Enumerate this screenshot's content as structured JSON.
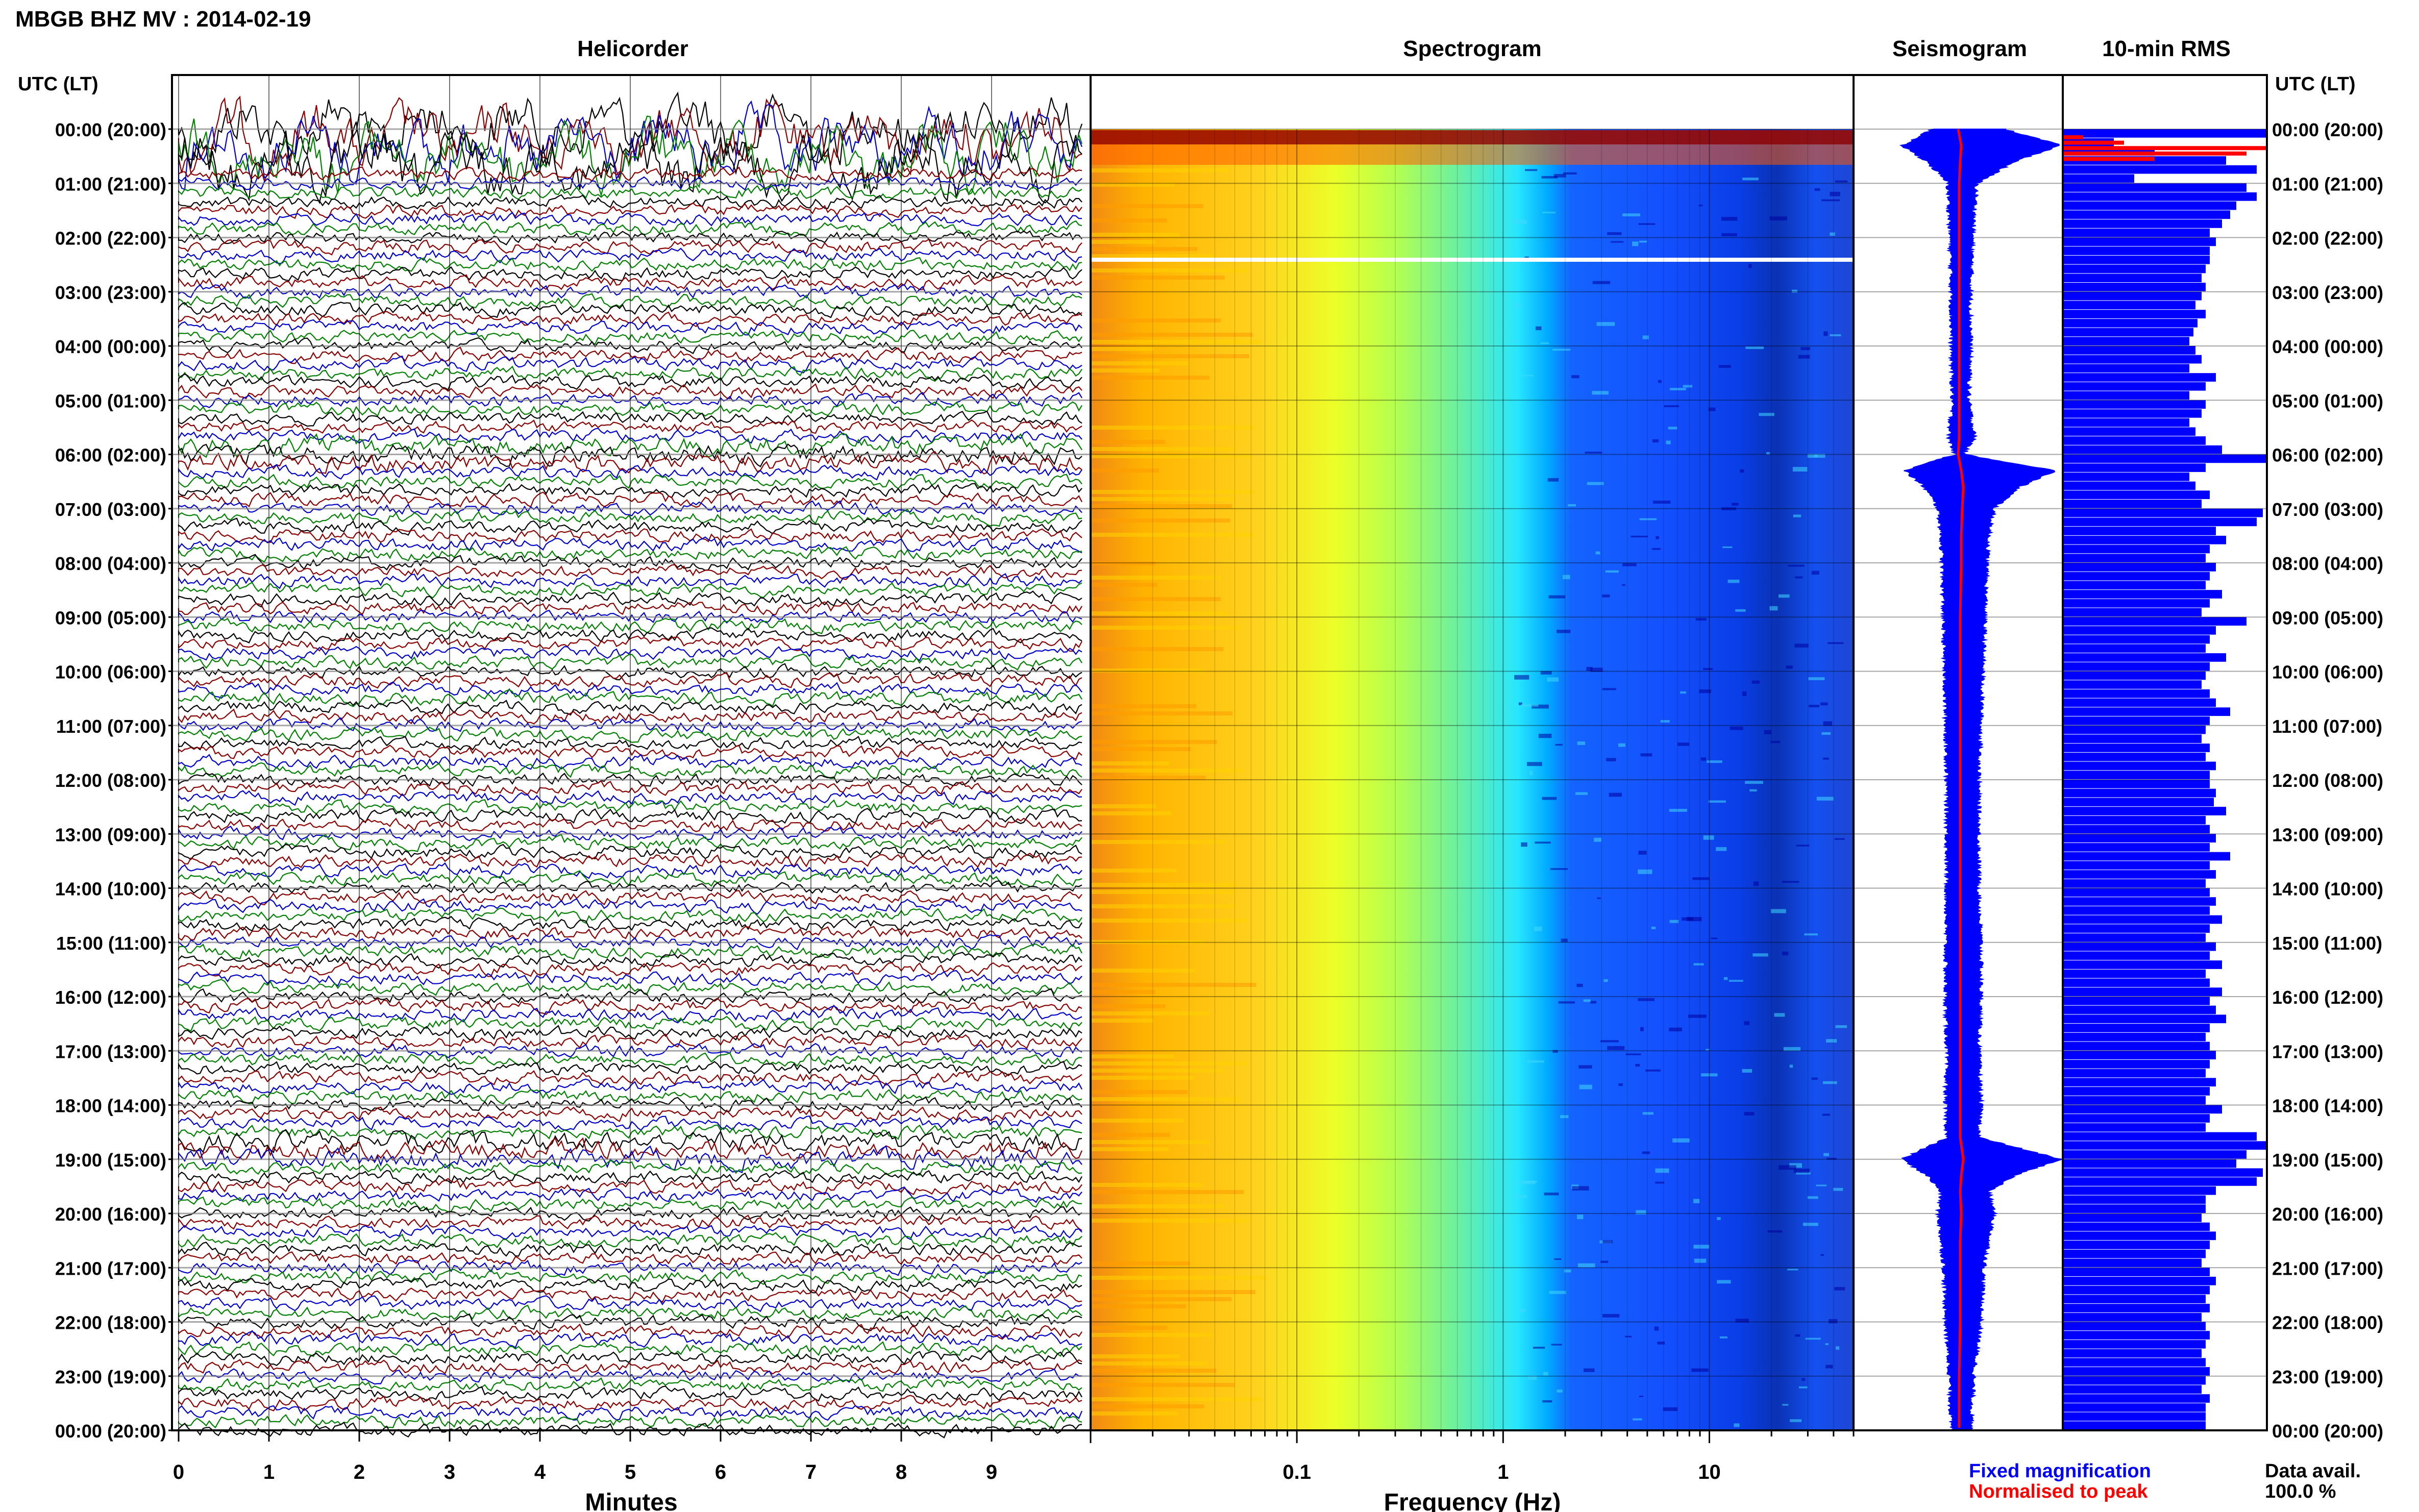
{
  "header": {
    "title": "MBGB BHZ MV : 2014-02-19"
  },
  "panels": {
    "helicorder": "Helicorder",
    "spectrogram": "Spectrogram",
    "seismogram": "Seismogram",
    "rms": "10-min RMS"
  },
  "axes": {
    "time_label": "UTC (LT)",
    "helicorder_xlabel": "Minutes",
    "spectrogram_xlabel": "Frequency (Hz)"
  },
  "legend": {
    "fixed": "Fixed magnification",
    "normalised": "Normalised to peak",
    "data_avail_label": "Data avail.",
    "data_avail_value": "100.0 %"
  },
  "colors": {
    "trace_cycle": [
      "#000000",
      "#8b0000",
      "#0000cd",
      "#008000"
    ],
    "fixed_magnification": "#0000ff",
    "normalised_to_peak": "#ff0000",
    "rms_bar": "#0000ff",
    "rms_bar_highlight": "#ff0000"
  },
  "chart_data": [
    {
      "type": "line",
      "name": "helicorder",
      "title": "Helicorder",
      "xlabel": "Minutes",
      "xlim": [
        0,
        10
      ],
      "x_ticks": [
        "0",
        "1",
        "2",
        "3",
        "4",
        "5",
        "6",
        "7",
        "8",
        "9"
      ],
      "time_ticks": [
        "00:00 (20:00)",
        "01:00 (21:00)",
        "02:00 (22:00)",
        "03:00 (23:00)",
        "04:00 (00:00)",
        "05:00 (01:00)",
        "06:00 (02:00)",
        "07:00 (03:00)",
        "08:00 (04:00)",
        "09:00 (05:00)",
        "10:00 (06:00)",
        "11:00 (07:00)",
        "12:00 (08:00)",
        "13:00 (09:00)",
        "14:00 (10:00)",
        "15:00 (11:00)",
        "16:00 (12:00)",
        "17:00 (13:00)",
        "18:00 (14:00)",
        "19:00 (15:00)",
        "20:00 (16:00)",
        "21:00 (17:00)",
        "22:00 (18:00)",
        "23:00 (19:00)",
        "00:00 (20:00)"
      ],
      "traces_per_hour": 6,
      "grid": true
    },
    {
      "type": "heatmap",
      "name": "spectrogram",
      "title": "Spectrogram",
      "xlabel": "Frequency (Hz)",
      "x_scale": "log",
      "xlim": [
        0.01,
        50
      ],
      "x_ticks": [
        "0.1",
        "1",
        "10"
      ],
      "grid": true
    },
    {
      "type": "line",
      "name": "seismogram",
      "title": "Seismogram",
      "hours": [
        0,
        0.3,
        0.6,
        1,
        2,
        3,
        4,
        5,
        5.7,
        6,
        6.3,
        6.6,
        7,
        7.5,
        8,
        9,
        10,
        11,
        12,
        13,
        14,
        15,
        16,
        17,
        18,
        18.6,
        19,
        19.3,
        19.6,
        20,
        20.5,
        21,
        22,
        23,
        24
      ],
      "fixed_magnification": [
        0.45,
        1.0,
        0.55,
        0.18,
        0.14,
        0.12,
        0.12,
        0.1,
        0.16,
        0.05,
        0.95,
        0.6,
        0.35,
        0.3,
        0.28,
        0.26,
        0.24,
        0.22,
        0.2,
        0.2,
        0.2,
        0.22,
        0.22,
        0.2,
        0.22,
        0.2,
        1.0,
        0.55,
        0.3,
        0.35,
        0.3,
        0.25,
        0.22,
        0.15,
        0.12
      ],
      "normalised_to_peak": [
        0.0,
        0.03,
        0.02,
        0.01,
        0.01,
        0.01,
        0.01,
        0.01,
        0.01,
        0.0,
        0.03,
        0.05,
        0.04,
        0.03,
        0.03,
        0.02,
        0.02,
        0.02,
        0.02,
        0.02,
        0.02,
        0.02,
        0.02,
        0.02,
        0.02,
        0.02,
        0.05,
        0.03,
        0.02,
        0.03,
        0.02,
        0.02,
        0.02,
        0.01,
        0.01
      ]
    },
    {
      "type": "bar",
      "name": "rms",
      "title": "10-min RMS",
      "orientation": "horizontal",
      "values": [
        1.0,
        0.25,
        0.45,
        0.8,
        0.95,
        0.35,
        0.9,
        0.95,
        0.85,
        0.82,
        0.78,
        0.72,
        0.75,
        0.72,
        0.72,
        0.7,
        0.68,
        0.7,
        0.68,
        0.65,
        0.7,
        0.66,
        0.64,
        0.62,
        0.65,
        0.68,
        0.62,
        0.75,
        0.7,
        0.62,
        0.7,
        0.68,
        0.62,
        0.65,
        0.7,
        0.78,
        1.0,
        0.7,
        0.62,
        0.65,
        0.72,
        0.68,
        0.98,
        0.95,
        0.75,
        0.8,
        0.72,
        0.7,
        0.75,
        0.72,
        0.7,
        0.78,
        0.72,
        0.68,
        0.9,
        0.75,
        0.72,
        0.7,
        0.8,
        0.72,
        0.7,
        0.68,
        0.72,
        0.75,
        0.82,
        0.72,
        0.7,
        0.68,
        0.72,
        0.7,
        0.75,
        0.72,
        0.72,
        0.75,
        0.74,
        0.8,
        0.7,
        0.72,
        0.75,
        0.72,
        0.82,
        0.72,
        0.75,
        0.7,
        0.72,
        0.75,
        0.72,
        0.78,
        0.72,
        0.7,
        0.75,
        0.72,
        0.78,
        0.7,
        0.72,
        0.78,
        0.72,
        0.75,
        0.8,
        0.72,
        0.7,
        0.72,
        0.75,
        0.72,
        0.7,
        0.75,
        0.72,
        0.7,
        0.78,
        0.72,
        0.7,
        0.95,
        1.0,
        0.9,
        0.85,
        0.98,
        0.95,
        0.75,
        0.7,
        0.7,
        0.68,
        0.72,
        0.75,
        0.72,
        0.7,
        0.68,
        0.72,
        0.75,
        0.72,
        0.7,
        0.72,
        0.68,
        0.7,
        0.72,
        0.7,
        0.68,
        0.7,
        0.72,
        0.7,
        0.68,
        0.72,
        0.7,
        0.7,
        0.7
      ],
      "highlight_top": [
        0.1,
        0.3,
        1.0,
        0.9,
        0.45
      ],
      "data_avail": "100.0 %"
    }
  ]
}
